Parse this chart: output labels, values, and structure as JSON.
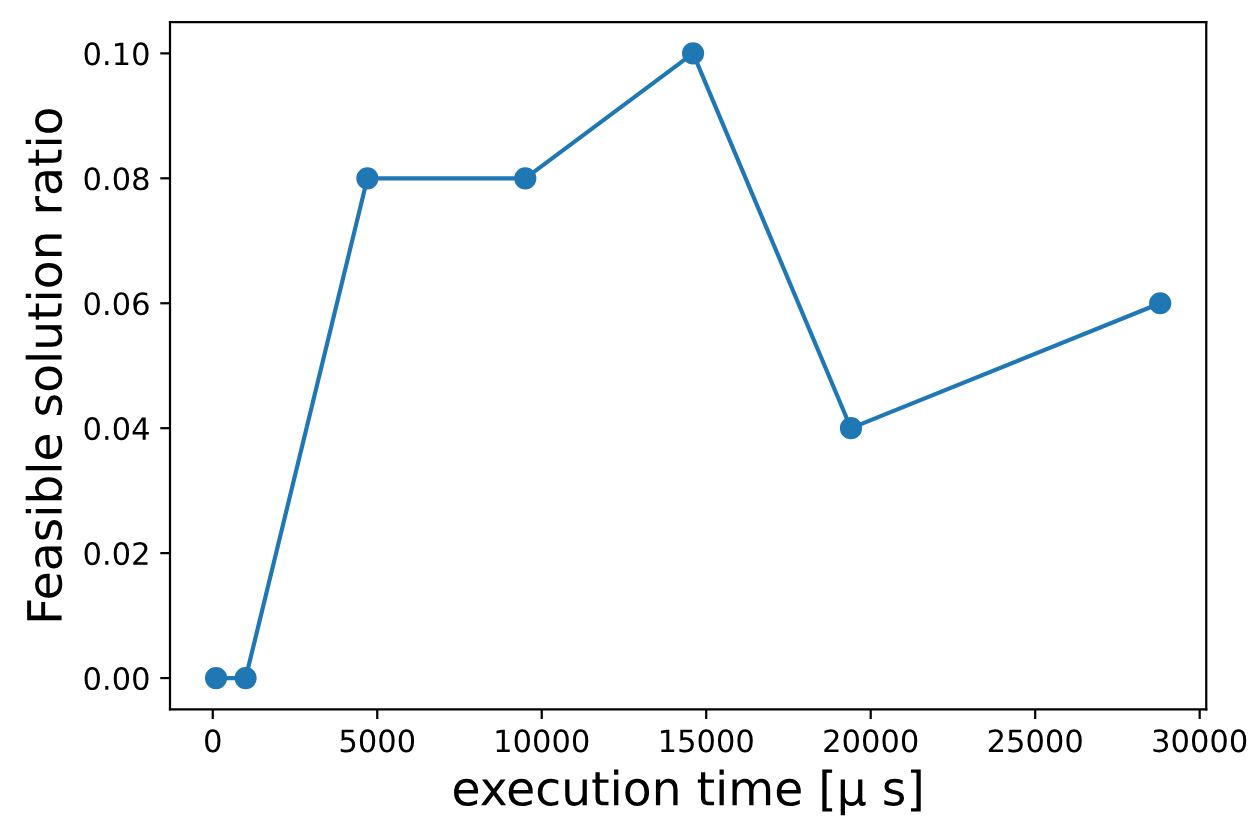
{
  "chart_data": {
    "type": "line",
    "xlabel": "execution time [μ s]",
    "ylabel": "Feasible solution ratio",
    "x": [
      100,
      1000,
      4700,
      9500,
      14600,
      19400,
      28800
    ],
    "series": [
      {
        "color": "#1f77b4",
        "values": [
          0.0,
          0.0,
          0.08,
          0.08,
          0.1,
          0.04,
          0.06
        ]
      }
    ],
    "xlim": [
      -1300,
      30200
    ],
    "xticks": [
      0,
      5000,
      10000,
      15000,
      20000,
      25000,
      30000
    ],
    "ylim": [
      -0.005,
      0.105
    ],
    "yticks": [
      {
        "value": 0,
        "label": "0.00"
      },
      {
        "value": 0.02,
        "label": "0.02"
      },
      {
        "value": 0.04,
        "label": "0.04"
      },
      {
        "value": 0.06,
        "label": "0.06"
      },
      {
        "value": 0.08,
        "label": "0.08"
      },
      {
        "value": 0.1,
        "label": "0.10"
      }
    ],
    "marker": "circle",
    "line_style": "solid",
    "grid": false
  }
}
